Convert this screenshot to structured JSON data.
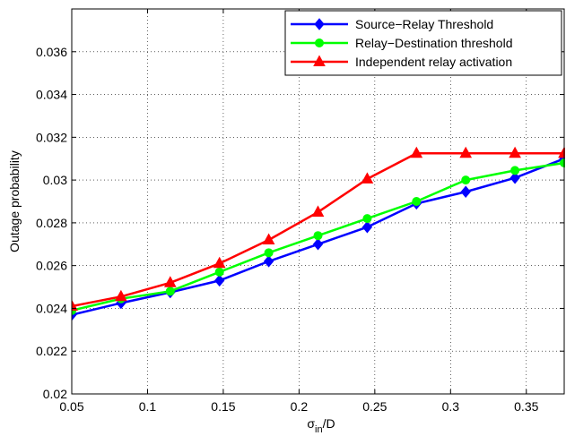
{
  "chart_data": {
    "type": "line",
    "title": "",
    "xlabel": "σ",
    "xlabel_sub": "in",
    "xlabel_suffix": "/D",
    "ylabel": "Outage probability",
    "xlim": [
      0.05,
      0.375
    ],
    "ylim": [
      0.02,
      0.038
    ],
    "xticks": [
      0.05,
      0.1,
      0.15,
      0.2,
      0.25,
      0.3,
      0.35
    ],
    "xtick_labels": [
      "0.05",
      "0.1",
      "0.15",
      "0.2",
      "0.25",
      "0.3",
      "0.35"
    ],
    "yticks": [
      0.02,
      0.022,
      0.024,
      0.026,
      0.028,
      0.03,
      0.032,
      0.034,
      0.036
    ],
    "ytick_labels": [
      "0.02",
      "0.022",
      "0.024",
      "0.026",
      "0.028",
      "0.03",
      "0.032",
      "0.034",
      "0.036"
    ],
    "grid": true,
    "legend_position": "top-right",
    "x": [
      0.05,
      0.0825,
      0.115,
      0.1475,
      0.18,
      0.2125,
      0.245,
      0.2775,
      0.31,
      0.3425,
      0.375
    ],
    "series": [
      {
        "name": "Source−Relay Threshold",
        "color": "#0000ff",
        "marker": "diamond",
        "values": [
          0.0237,
          0.02425,
          0.02475,
          0.0253,
          0.0262,
          0.027,
          0.0278,
          0.0289,
          0.02945,
          0.0301,
          0.031
        ]
      },
      {
        "name": "Relay−Destination threshold",
        "color": "#00ff00",
        "marker": "circle",
        "values": [
          0.0239,
          0.02445,
          0.0248,
          0.0257,
          0.0266,
          0.0274,
          0.0282,
          0.029,
          0.03,
          0.03045,
          0.0308
        ]
      },
      {
        "name": "Independent relay activation",
        "color": "#ff0000",
        "marker": "triangle",
        "values": [
          0.0241,
          0.02455,
          0.0252,
          0.0261,
          0.0272,
          0.0285,
          0.03005,
          0.03125,
          0.03125,
          0.03125,
          0.03125
        ]
      }
    ]
  }
}
